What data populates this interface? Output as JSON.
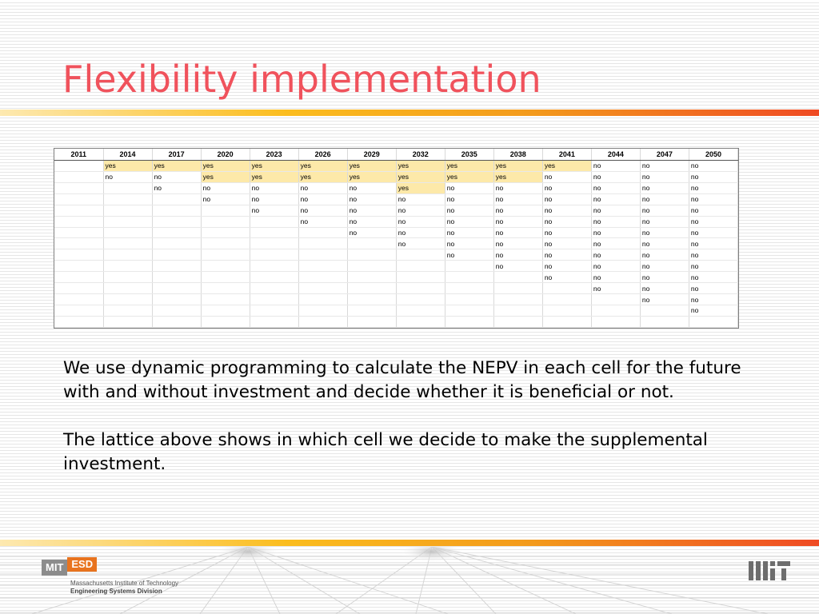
{
  "slide": {
    "title": "Flexibility implementation"
  },
  "table": {
    "years": [
      "2011",
      "2014",
      "2017",
      "2020",
      "2023",
      "2026",
      "2029",
      "2032",
      "2035",
      "2038",
      "2041",
      "2044",
      "2047",
      "2050"
    ],
    "rows": [
      [
        "",
        "yes",
        "yes",
        "yes",
        "yes",
        "yes",
        "yes",
        "yes",
        "yes",
        "yes",
        "yes",
        "no",
        "no",
        "no"
      ],
      [
        "",
        "no",
        "no",
        "yes",
        "yes",
        "yes",
        "yes",
        "yes",
        "yes",
        "yes",
        "no",
        "no",
        "no",
        "no"
      ],
      [
        "",
        "",
        "no",
        "no",
        "no",
        "no",
        "no",
        "yes",
        "no",
        "no",
        "no",
        "no",
        "no",
        "no"
      ],
      [
        "",
        "",
        "",
        "no",
        "no",
        "no",
        "no",
        "no",
        "no",
        "no",
        "no",
        "no",
        "no",
        "no"
      ],
      [
        "",
        "",
        "",
        "",
        "no",
        "no",
        "no",
        "no",
        "no",
        "no",
        "no",
        "no",
        "no",
        "no"
      ],
      [
        "",
        "",
        "",
        "",
        "",
        "no",
        "no",
        "no",
        "no",
        "no",
        "no",
        "no",
        "no",
        "no"
      ],
      [
        "",
        "",
        "",
        "",
        "",
        "",
        "no",
        "no",
        "no",
        "no",
        "no",
        "no",
        "no",
        "no"
      ],
      [
        "",
        "",
        "",
        "",
        "",
        "",
        "",
        "no",
        "no",
        "no",
        "no",
        "no",
        "no",
        "no"
      ],
      [
        "",
        "",
        "",
        "",
        "",
        "",
        "",
        "",
        "no",
        "no",
        "no",
        "no",
        "no",
        "no"
      ],
      [
        "",
        "",
        "",
        "",
        "",
        "",
        "",
        "",
        "",
        "no",
        "no",
        "no",
        "no",
        "no"
      ],
      [
        "",
        "",
        "",
        "",
        "",
        "",
        "",
        "",
        "",
        "",
        "no",
        "no",
        "no",
        "no"
      ],
      [
        "",
        "",
        "",
        "",
        "",
        "",
        "",
        "",
        "",
        "",
        "",
        "no",
        "no",
        "no"
      ],
      [
        "",
        "",
        "",
        "",
        "",
        "",
        "",
        "",
        "",
        "",
        "",
        "",
        "no",
        "no"
      ],
      [
        "",
        "",
        "",
        "",
        "",
        "",
        "",
        "",
        "",
        "",
        "",
        "",
        "",
        "no"
      ],
      [
        "",
        "",
        "",
        "",
        "",
        "",
        "",
        "",
        "",
        "",
        "",
        "",
        "",
        ""
      ]
    ],
    "yes_color": "#fde9a9"
  },
  "body": {
    "paragraph1": "We use dynamic programming to calculate the NEPV in each cell for the future with and without investment and decide whether it is beneficial or not.",
    "paragraph2": "The lattice above shows in which cell we decide to make the supplemental investment."
  },
  "footer": {
    "mit_label": "MIT",
    "esd_label": "ESD",
    "institute": "Massachusetts Institute of Technology",
    "division": "Engineering Systems Division"
  },
  "colors": {
    "title": "#f0525c",
    "esd_orange": "#e8731e"
  }
}
